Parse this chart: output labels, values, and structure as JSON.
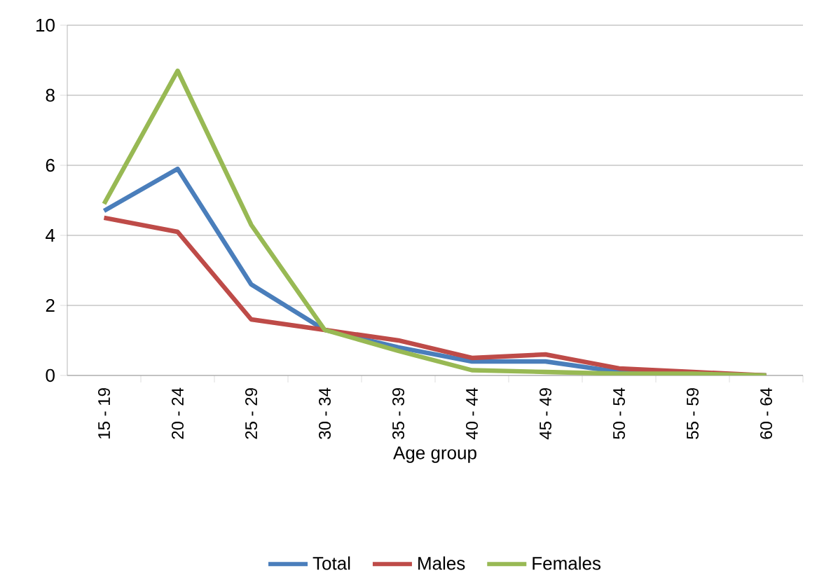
{
  "chart_data": {
    "type": "line",
    "xlabel": "Age group",
    "categories": [
      "15 - 19",
      "20 - 24",
      "25 - 29",
      "30 - 34",
      "35 - 39",
      "40 - 44",
      "45 - 49",
      "50 - 54",
      "55 - 59",
      "60 - 64"
    ],
    "series": [
      {
        "name": "Total",
        "color": "#4a7ebb",
        "values": [
          4.7,
          5.9,
          2.6,
          1.3,
          0.8,
          0.4,
          0.4,
          0.1,
          null,
          0
        ]
      },
      {
        "name": "Males",
        "color": "#be4b48",
        "values": [
          4.5,
          4.1,
          1.6,
          1.3,
          1.0,
          0.5,
          0.6,
          0.2,
          0.1,
          0
        ]
      },
      {
        "name": "Females",
        "color": "#98b954",
        "values": [
          4.9,
          8.7,
          4.3,
          1.3,
          0.7,
          0.15,
          0.1,
          0.05,
          0.05,
          0
        ]
      }
    ],
    "ylim": [
      0,
      10
    ],
    "yticks": [
      0,
      2,
      4,
      6,
      8,
      10
    ],
    "grid": "y",
    "legend": "bottom",
    "marker": "none",
    "line_style": "solid"
  }
}
